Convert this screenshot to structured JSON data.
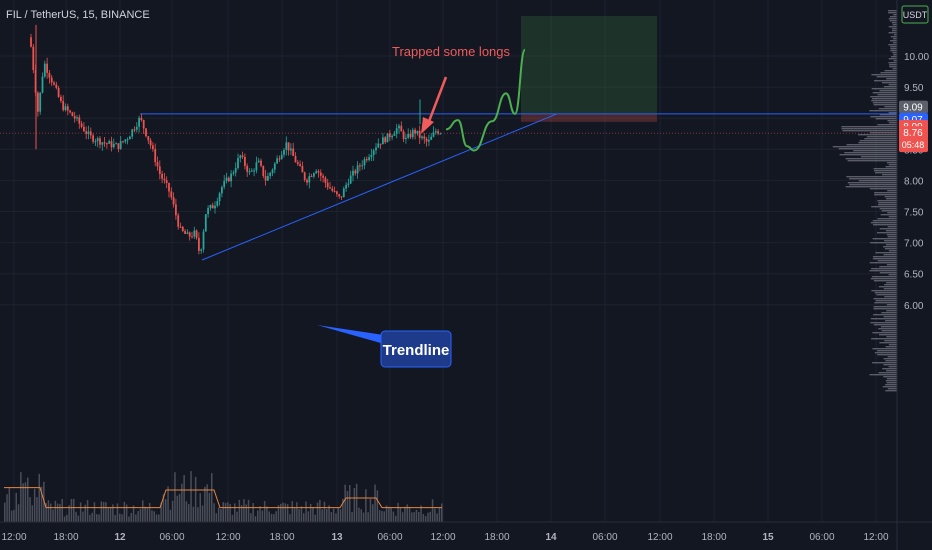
{
  "header": {
    "symbol": "FIL / TetherUS, 15, BINANCE"
  },
  "annotations": {
    "trapped": "Trapped some longs",
    "trendline": "Trendline"
  },
  "colors": {
    "background": "#131722",
    "up": "#26a69a",
    "down": "#ef5350",
    "grid": "#1e222d",
    "trendline": "#2962ff",
    "forecast": "#4caf50",
    "annotation": "#f05b5b",
    "label_box": "#1e3a8a"
  },
  "price_tags": {
    "currency": "USDT",
    "high": "9.09",
    "level": "9.07",
    "stop": "8.99",
    "last": "8.76",
    "countdown": "05:48"
  },
  "chart_data": {
    "type": "candlestick",
    "title": "FIL / TetherUS, 15, BINANCE",
    "y_ticks": [
      "10.00",
      "9.50",
      "9.00",
      "8.50",
      "8.00",
      "7.50",
      "7.00",
      "6.50",
      "6.00"
    ],
    "y_tick_values": [
      10.0,
      9.5,
      9.0,
      8.5,
      8.0,
      7.5,
      7.0,
      6.5,
      6.0
    ],
    "x_ticks": [
      "12:00",
      "18:00",
      "12",
      "06:00",
      "12:00",
      "18:00",
      "13",
      "06:00",
      "12:00",
      "18:00",
      "14",
      "06:00",
      "12:00",
      "18:00",
      "15",
      "06:00",
      "12:00"
    ],
    "ylim": [
      5.5,
      10.6
    ],
    "resistance_level": 9.07,
    "last_price": 8.76,
    "trendline": {
      "from": 6.72,
      "to": 9.07
    },
    "forecast_path": [
      8.82,
      8.97,
      8.55,
      8.48,
      8.95,
      9.4,
      9.07,
      10.1
    ],
    "volume_sma_visible": true,
    "volume_profile_visible": true
  }
}
